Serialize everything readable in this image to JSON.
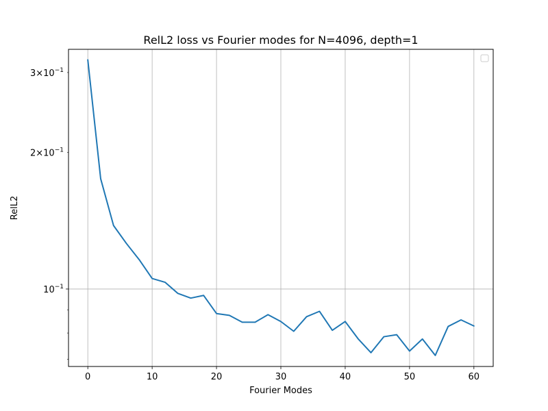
{
  "chart_data": {
    "type": "line",
    "title": "RelL2 loss vs Fourier modes for N=4096, depth=1",
    "xlabel": "Fourier Modes",
    "ylabel": "RelL2",
    "yscale": "log",
    "xlim": [
      -3,
      63
    ],
    "ylim": [
      0.0675,
      0.3375
    ],
    "x_ticks": [
      0,
      10,
      20,
      30,
      40,
      50,
      60
    ],
    "x_tick_labels": [
      "0",
      "10",
      "20",
      "30",
      "40",
      "50",
      "60"
    ],
    "y_major_ticks": [
      0.1
    ],
    "y_labeled_minor_ticks": [
      0.2,
      0.3
    ],
    "y_unlabeled_minor_ticks": [
      0.07,
      0.08,
      0.09
    ],
    "y_tick_labels": [
      {
        "value": 0.1,
        "base": "10",
        "exp": "−1",
        "mantissa": ""
      },
      {
        "value": 0.2,
        "base": "10",
        "exp": "−1",
        "mantissa": "2×"
      },
      {
        "value": 0.3,
        "base": "10",
        "exp": "−1",
        "mantissa": "3×"
      }
    ],
    "grid": "x-major and y-major",
    "legend": {
      "placement": "upper-right",
      "entries": []
    },
    "series": [
      {
        "color": "#1f77b4",
        "x": [
          0,
          2,
          4,
          6,
          8,
          10,
          12,
          14,
          16,
          18,
          20,
          22,
          24,
          26,
          28,
          30,
          32,
          34,
          36,
          38,
          40,
          42,
          44,
          46,
          48,
          50,
          52,
          54,
          56,
          58,
          60
        ],
        "y": [
          0.32,
          0.175,
          0.138,
          0.126,
          0.116,
          0.1055,
          0.1035,
          0.0978,
          0.0955,
          0.0968,
          0.0883,
          0.0875,
          0.0845,
          0.0845,
          0.0878,
          0.0848,
          0.0807,
          0.0869,
          0.0893,
          0.0811,
          0.0848,
          0.0777,
          0.0724,
          0.0785,
          0.0793,
          0.073,
          0.0776,
          0.0714,
          0.0827,
          0.0855,
          0.0829
        ]
      }
    ]
  }
}
